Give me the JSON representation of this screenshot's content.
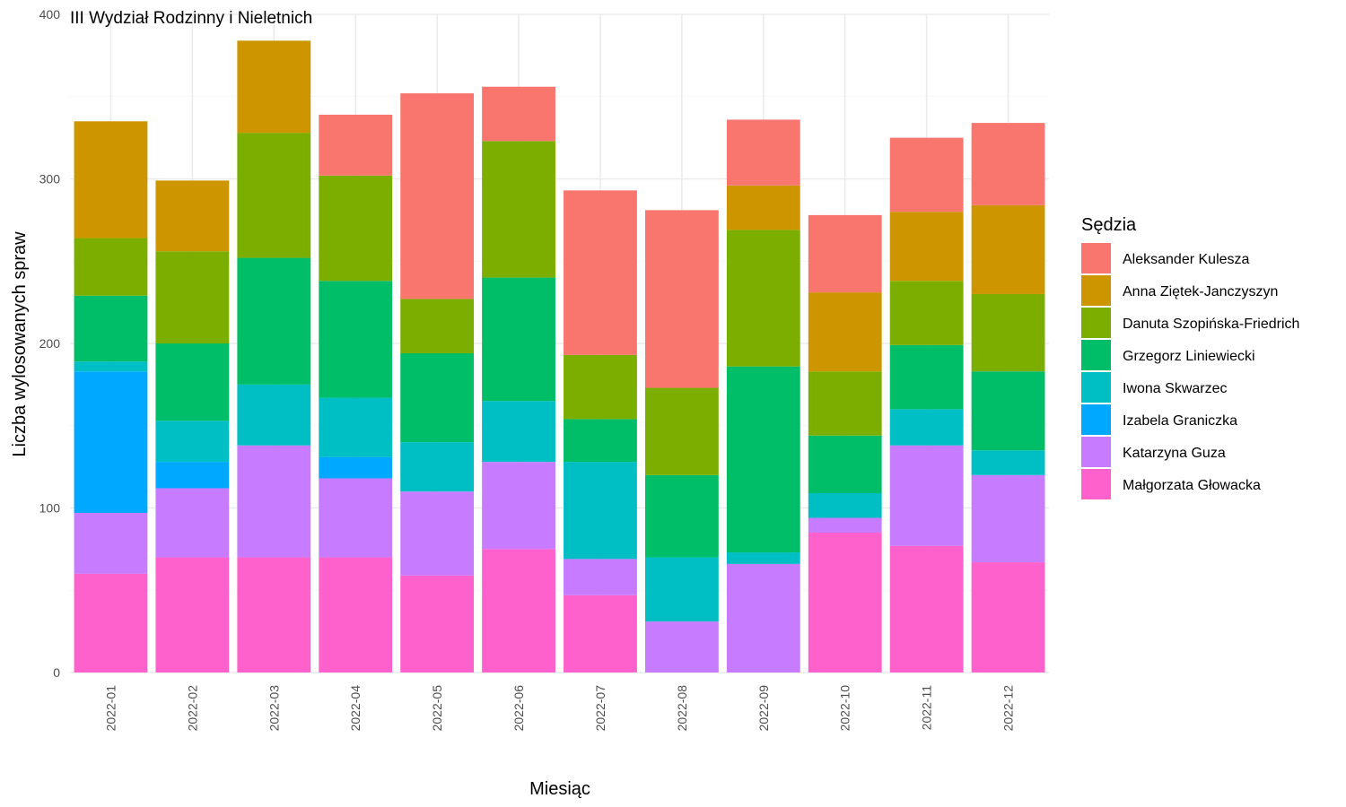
{
  "chart_data": {
    "type": "bar",
    "stacked": true,
    "title": "III Wydział Rodzinny i Nieletnich",
    "xlabel": "Miesiąc",
    "ylabel": "Liczba wylosowanych spraw",
    "ylim": [
      0,
      400
    ],
    "yticks": [
      0,
      100,
      200,
      300,
      400
    ],
    "grid": true,
    "legend_title": "Sędzia",
    "legend_position": "right",
    "categories": [
      "2022-01",
      "2022-02",
      "2022-03",
      "2022-04",
      "2022-05",
      "2022-06",
      "2022-07",
      "2022-08",
      "2022-09",
      "2022-10",
      "2022-11",
      "2022-12"
    ],
    "series": [
      {
        "name": "Małgorzata Głowacka",
        "color": "#FF61CC",
        "values": [
          60,
          70,
          70,
          70,
          59,
          75,
          47,
          0,
          0,
          85,
          77,
          67
        ]
      },
      {
        "name": "Katarzyna Guza",
        "color": "#C77CFF",
        "values": [
          37,
          42,
          68,
          48,
          51,
          53,
          22,
          31,
          66,
          9,
          61,
          53
        ]
      },
      {
        "name": "Izabela Graniczka",
        "color": "#00A9FF",
        "values": [
          86,
          16,
          0,
          13,
          0,
          0,
          0,
          0,
          0,
          0,
          0,
          0
        ]
      },
      {
        "name": "Iwona Skwarzec",
        "color": "#00BFC4",
        "values": [
          6,
          25,
          37,
          36,
          30,
          37,
          59,
          39,
          7,
          15,
          22,
          15
        ]
      },
      {
        "name": "Grzegorz Liniewiecki",
        "color": "#00BE67",
        "values": [
          40,
          47,
          77,
          71,
          54,
          75,
          26,
          50,
          113,
          35,
          39,
          48
        ]
      },
      {
        "name": "Danuta Szopińska-Friedrich",
        "color": "#7CAE00",
        "values": [
          35,
          56,
          76,
          64,
          33,
          83,
          39,
          53,
          83,
          39,
          39,
          47
        ]
      },
      {
        "name": "Anna Ziętek-Janczyszyn",
        "color": "#CD9600",
        "values": [
          71,
          43,
          56,
          0,
          0,
          0,
          0,
          0,
          27,
          48,
          42,
          54
        ]
      },
      {
        "name": "Aleksander Kulesza",
        "color": "#F8766D",
        "values": [
          0,
          0,
          0,
          37,
          125,
          33,
          100,
          108,
          40,
          47,
          45,
          50
        ]
      }
    ],
    "legend_order": [
      "Aleksander Kulesza",
      "Anna Ziętek-Janczyszyn",
      "Danuta Szopińska-Friedrich",
      "Grzegorz Liniewiecki",
      "Iwona Skwarzec",
      "Izabela Graniczka",
      "Katarzyna Guza",
      "Małgorzata Głowacka"
    ]
  }
}
